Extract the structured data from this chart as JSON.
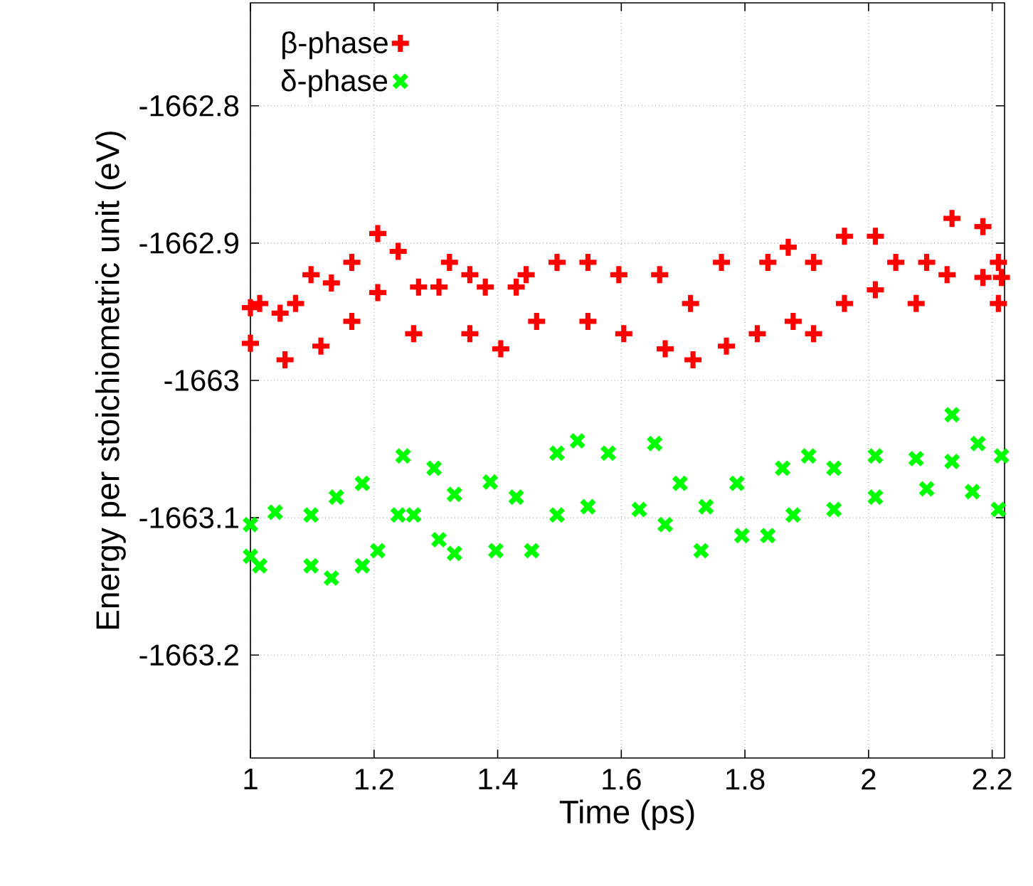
{
  "chart_data": {
    "type": "scatter",
    "xlabel": "Time (ps)",
    "ylabel": "Energy per stoichiometric unit (eV)",
    "xlim": [
      1,
      2.22
    ],
    "ylim": [
      -1663.275,
      -1662.725
    ],
    "xticks": [
      1,
      1.2,
      1.4,
      1.6,
      1.8,
      2,
      2.2
    ],
    "yticks": [
      -1663.2,
      -1663.1,
      -1663,
      -1662.9,
      -1662.8
    ],
    "grid": true,
    "legend": "top left",
    "series": [
      {
        "name": "β-phase",
        "color": "#ff0000",
        "marker": "plus",
        "x": [
          1.0,
          1.015,
          1.048,
          1.073,
          1.098,
          1.131,
          1.164,
          1.206,
          1.239,
          1.272,
          1.305,
          1.322,
          1.355,
          1.38,
          1.43,
          1.446,
          1.496,
          1.546,
          1.596,
          1.662,
          1.712,
          1.762,
          1.837,
          1.87,
          1.911,
          1.961,
          2.011,
          2.044,
          2.094,
          2.135,
          2.185,
          2.21,
          2.215,
          1.0,
          1.056,
          1.114,
          1.164,
          1.206,
          1.264,
          1.355,
          1.405,
          1.463,
          1.546,
          1.604,
          1.671,
          1.716,
          1.77,
          1.82,
          1.878,
          1.911,
          1.961,
          2.011,
          2.077,
          2.127,
          2.185,
          2.21
        ],
        "values": [
          -1662.947,
          -1662.944,
          -1662.951,
          -1662.944,
          -1662.923,
          -1662.929,
          -1662.914,
          -1662.893,
          -1662.906,
          -1662.932,
          -1662.932,
          -1662.914,
          -1662.923,
          -1662.932,
          -1662.932,
          -1662.923,
          -1662.914,
          -1662.914,
          -1662.923,
          -1662.923,
          -1662.944,
          -1662.914,
          -1662.914,
          -1662.903,
          -1662.914,
          -1662.895,
          -1662.895,
          -1662.914,
          -1662.914,
          -1662.882,
          -1662.888,
          -1662.914,
          -1662.925,
          -1662.973,
          -1662.985,
          -1662.975,
          -1662.957,
          -1662.936,
          -1662.966,
          -1662.966,
          -1662.977,
          -1662.957,
          -1662.957,
          -1662.966,
          -1662.977,
          -1662.985,
          -1662.975,
          -1662.966,
          -1662.957,
          -1662.966,
          -1662.944,
          -1662.934,
          -1662.944,
          -1662.923,
          -1662.925,
          -1662.944
        ]
      },
      {
        "name": "δ-phase",
        "color": "#00ff00",
        "marker": "cross",
        "x": [
          1.0,
          1.04,
          1.098,
          1.139,
          1.181,
          1.247,
          1.297,
          1.33,
          1.388,
          1.43,
          1.496,
          1.529,
          1.579,
          1.654,
          1.695,
          1.737,
          1.787,
          1.861,
          1.903,
          1.944,
          2.011,
          2.077,
          2.135,
          2.177,
          2.215,
          1.0,
          1.015,
          1.098,
          1.131,
          1.181,
          1.206,
          1.239,
          1.264,
          1.305,
          1.33,
          1.397,
          1.455,
          1.496,
          1.546,
          1.629,
          1.671,
          1.729,
          1.795,
          1.837,
          1.878,
          1.944,
          2.011,
          2.094,
          2.135,
          2.168,
          2.21
        ],
        "values": [
          -1663.105,
          -1663.096,
          -1663.098,
          -1663.085,
          -1663.075,
          -1663.055,
          -1663.064,
          -1663.083,
          -1663.074,
          -1663.085,
          -1663.053,
          -1663.044,
          -1663.053,
          -1663.046,
          -1663.075,
          -1663.092,
          -1663.075,
          -1663.064,
          -1663.055,
          -1663.064,
          -1663.055,
          -1663.057,
          -1663.025,
          -1663.046,
          -1663.055,
          -1663.128,
          -1663.135,
          -1663.135,
          -1663.144,
          -1663.135,
          -1663.124,
          -1663.098,
          -1663.098,
          -1663.116,
          -1663.126,
          -1663.124,
          -1663.124,
          -1663.098,
          -1663.092,
          -1663.094,
          -1663.105,
          -1663.124,
          -1663.113,
          -1663.113,
          -1663.098,
          -1663.094,
          -1663.085,
          -1663.079,
          -1663.059,
          -1663.081,
          -1663.094
        ]
      }
    ]
  }
}
